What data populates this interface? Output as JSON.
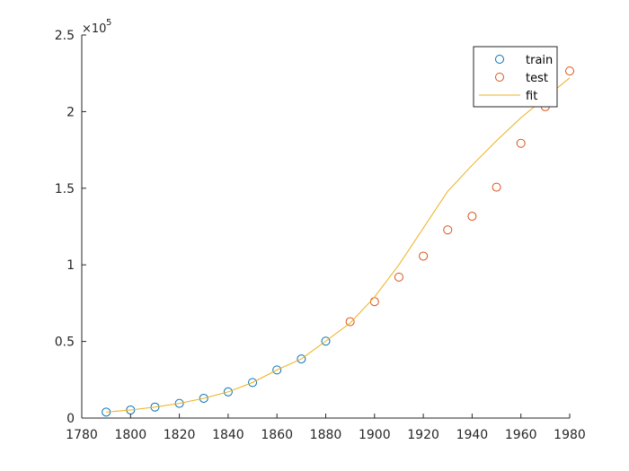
{
  "chart_data": {
    "type": "scatter",
    "title": "",
    "xlabel": "",
    "ylabel": "",
    "xlim": [
      1780,
      1980
    ],
    "ylim": [
      0,
      250000
    ],
    "x_ticks": [
      1780,
      1800,
      1820,
      1840,
      1860,
      1880,
      1900,
      1920,
      1940,
      1960,
      1980
    ],
    "y_ticks": [
      0,
      50000,
      100000,
      150000,
      200000,
      250000
    ],
    "y_tick_labels": [
      "0",
      "0.5",
      "1",
      "1.5",
      "2",
      "2.5"
    ],
    "y_exponent": {
      "base": "×10",
      "power": "5"
    },
    "grid": false,
    "legend": {
      "position": "top-right"
    },
    "series": [
      {
        "name": "train",
        "kind": "marker",
        "color": "#0072BD",
        "x": [
          1790,
          1800,
          1810,
          1820,
          1830,
          1840,
          1850,
          1860,
          1870,
          1880
        ],
        "y": [
          3900,
          5300,
          7200,
          9600,
          12900,
          17100,
          23200,
          31400,
          38600,
          50200
        ]
      },
      {
        "name": "test",
        "kind": "marker",
        "color": "#D95319",
        "x": [
          1890,
          1900,
          1910,
          1920,
          1930,
          1940,
          1950,
          1960,
          1970,
          1980
        ],
        "y": [
          62900,
          76000,
          92000,
          105700,
          122800,
          131700,
          150700,
          179300,
          203200,
          226500
        ]
      },
      {
        "name": "fit",
        "kind": "line",
        "color": "#EDB120",
        "x": [
          1790,
          1800,
          1810,
          1820,
          1830,
          1840,
          1850,
          1860,
          1870,
          1880,
          1890,
          1900,
          1910,
          1920,
          1930,
          1940,
          1950,
          1960,
          1970,
          1980
        ],
        "y": [
          3900,
          5300,
          7200,
          9600,
          12900,
          17100,
          23200,
          31400,
          38600,
          50200,
          62000,
          79000,
          100000,
          124000,
          148000,
          165000,
          181000,
          196000,
          209000,
          222000
        ]
      }
    ]
  }
}
